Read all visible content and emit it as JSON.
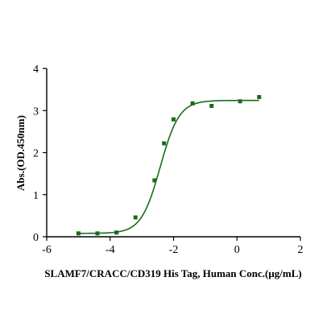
{
  "chart_data": {
    "type": "scatter",
    "xlabel": "SLAMF7/CRACC/CD319 His Tag, Human Conc.(μg/mL)",
    "ylabel": "Abs.(OD.450nm)",
    "xlim": [
      -6,
      2
    ],
    "ylim": [
      0,
      4
    ],
    "xticks": [
      -6,
      -4,
      -2,
      0,
      2
    ],
    "yticks": [
      0,
      1,
      2,
      3,
      4
    ],
    "x_tick_labels": [
      "-6",
      "-4",
      "-2",
      "0",
      "2"
    ],
    "y_tick_labels": [
      "0",
      "1",
      "2",
      "3",
      "4"
    ],
    "grid": false,
    "legend": "none",
    "series": [
      {
        "color": "#1a6b1a",
        "marker": "square",
        "x": [
          -5.0,
          -4.4,
          -3.8,
          -3.2,
          -2.6,
          -2.3,
          -2.0,
          -1.4,
          -0.8,
          0.1,
          0.7
        ],
        "y": [
          0.08,
          0.08,
          0.1,
          0.46,
          1.34,
          2.22,
          2.79,
          3.17,
          3.11,
          3.22,
          3.32
        ]
      }
    ],
    "fit_curve": {
      "type": "4PL",
      "color": "#1a6b1a",
      "bottom": 0.08,
      "top": 3.24,
      "logEC50": -2.42,
      "hill": 1.45
    }
  }
}
